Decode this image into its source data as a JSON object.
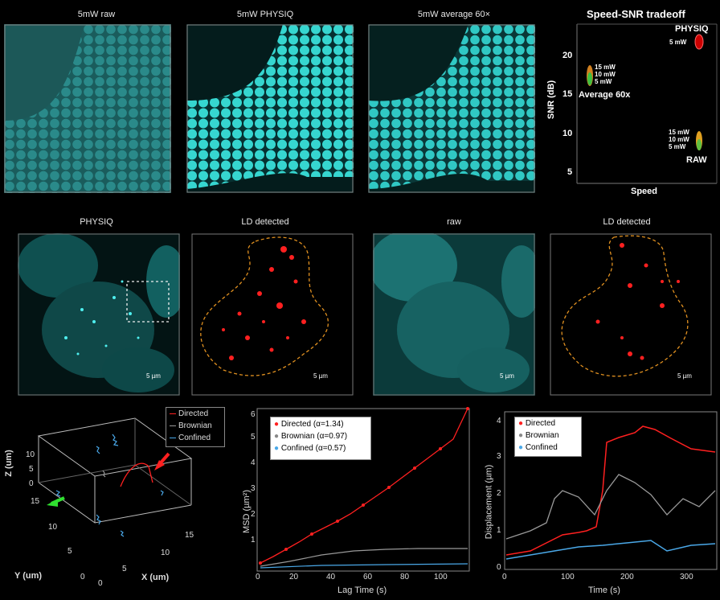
{
  "row1": {
    "titles": [
      "5mW raw",
      "5mW PHYSIQ",
      "5mW average 60×"
    ]
  },
  "tradeoff": {
    "title": "Speed-SNR tradeoff",
    "xlabel": "Speed",
    "ylabel": "SNR (dB)",
    "yticks": [
      "20",
      "15",
      "10",
      "5"
    ],
    "physiq_label": "PHYSIQ",
    "physiq_point": "5 mW",
    "avg_label": "Average 60x",
    "avg_points": [
      "15 mW",
      "10 mW",
      "5 mW"
    ],
    "raw_label": "RAW",
    "raw_points": [
      "15 mW",
      "10 mW",
      "5 mW"
    ]
  },
  "row2": {
    "titles": [
      "PHYSIQ",
      "LD detected",
      "raw",
      "LD detected"
    ],
    "scalebar": "5 µm"
  },
  "traj3d": {
    "legend": [
      "Directed",
      "Brownian",
      "Confined"
    ],
    "zlabel": "Z (um)",
    "ylabel": "Y (um)",
    "xlabel": "X (um)",
    "zticks": [
      "10",
      "5",
      "0"
    ],
    "yticks": [
      "15",
      "10",
      "5",
      "0"
    ],
    "xticks": [
      "0",
      "5",
      "10",
      "15"
    ]
  },
  "msd": {
    "ylabel": "MSD (µm²)",
    "xlabel": "Lag Time (s)",
    "yticks": [
      "1",
      "2",
      "3",
      "4",
      "5",
      "6"
    ],
    "xticks": [
      "0",
      "20",
      "40",
      "60",
      "80",
      "100"
    ],
    "legend": [
      "Directed (α=1.34)",
      "Brownian (α=0.97)",
      "Confined (α=0.57)"
    ]
  },
  "disp": {
    "ylabel": "Displacement  (µm)",
    "xlabel": "Time (s)",
    "yticks": [
      "0",
      "1",
      "2",
      "3",
      "4"
    ],
    "xticks": [
      "0",
      "100",
      "200",
      "300"
    ],
    "legend": [
      "Directed",
      "Brownian",
      "Confined"
    ]
  },
  "colors": {
    "cyan": "#2fd0d0",
    "red": "#ff2020",
    "gray": "#9a9a9a",
    "blue": "#4aa8e8",
    "orange": "#e09020",
    "green": "#30e030"
  }
}
